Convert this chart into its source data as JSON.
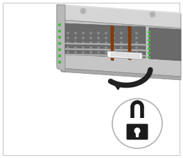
{
  "bg_color": "#ffffff",
  "border_color": "#c8c8c8",
  "chassis_top_color": "#d8d8d8",
  "chassis_front_color": "#c0c0c0",
  "chassis_side_color": "#b0b0b0",
  "chassis_edge_color": "#888888",
  "chassis_frame_color": "#a8a8a8",
  "drive_bay_color": "#686868",
  "drive_dot_color": "#909090",
  "green_led_color": "#44bb44",
  "brown_sep_color": "#8B4000",
  "lever_color": "#e8e8e8",
  "lever_edge_color": "#aaaaaa",
  "arrow_color": "#222222",
  "lock_body_color": "#1a1a1a",
  "lock_circle_edge": "#aaaaaa",
  "inner_rail_color": "#d0d0d0",
  "screw_color": "#bbbbbb"
}
